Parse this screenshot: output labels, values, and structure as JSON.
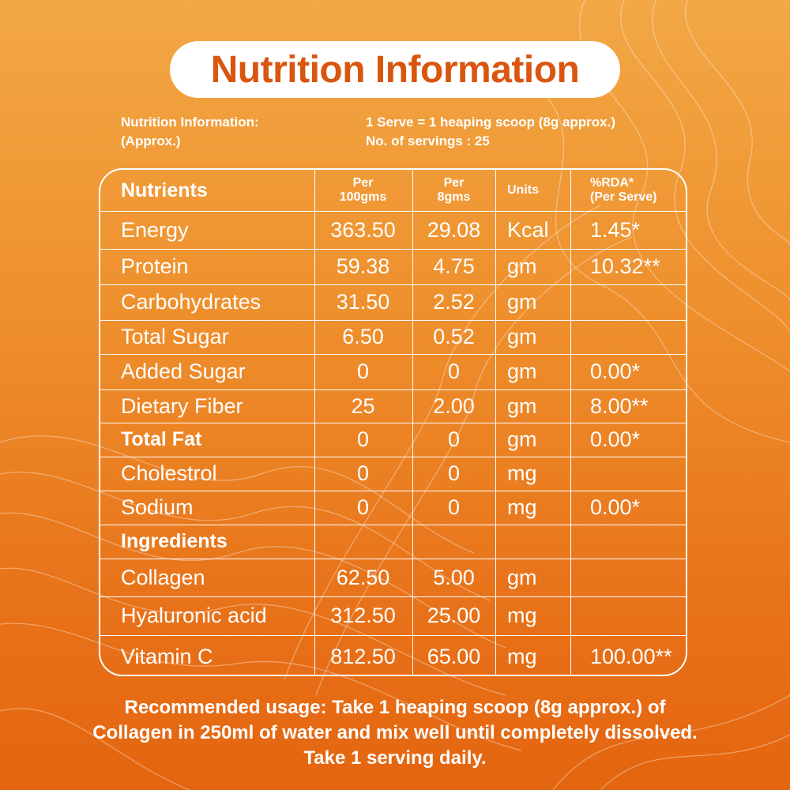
{
  "title": "Nutrition Information",
  "info": {
    "left_line1": "Nutrition Information:",
    "left_line2": "(Approx.)",
    "right_line1": "1 Serve = 1 heaping scoop (8g approx.)",
    "right_line2": "No. of servings : 25"
  },
  "table": {
    "headers": {
      "nutrients": "Nutrients",
      "per100_l1": "Per",
      "per100_l2": "100gms",
      "per8_l1": "Per",
      "per8_l2": "8gms",
      "units": "Units",
      "rda_l1": "%RDA*",
      "rda_l2": "(Per Serve)"
    },
    "rows": [
      {
        "name": "Energy",
        "per100": "363.50",
        "per8": "29.08",
        "unit": "Kcal",
        "rda": "1.45*"
      },
      {
        "name": "Protein",
        "per100": "59.38",
        "per8": "4.75",
        "unit": "gm",
        "rda": "10.32**"
      },
      {
        "name": "Carbohydrates",
        "per100": "31.50",
        "per8": "2.52",
        "unit": "gm",
        "rda": ""
      },
      {
        "name": "Total Sugar",
        "per100": "6.50",
        "per8": "0.52",
        "unit": "gm",
        "rda": ""
      },
      {
        "name": "Added Sugar",
        "per100": "0",
        "per8": "0",
        "unit": "gm",
        "rda": "0.00*"
      },
      {
        "name": "Dietary Fiber",
        "per100": "25",
        "per8": "2.00",
        "unit": "gm",
        "rda": "8.00**"
      },
      {
        "name": "Total Fat",
        "per100": "0",
        "per8": "0",
        "unit": "gm",
        "rda": "0.00*"
      },
      {
        "name": "Cholestrol",
        "per100": "0",
        "per8": "0",
        "unit": "mg",
        "rda": ""
      },
      {
        "name": "Sodium",
        "per100": "0",
        "per8": "0",
        "unit": "mg",
        "rda": "0.00*"
      },
      {
        "name": "Ingredients",
        "per100": "",
        "per8": "",
        "unit": "",
        "rda": ""
      },
      {
        "name": "Collagen",
        "per100": "62.50",
        "per8": "5.00",
        "unit": "gm",
        "rda": ""
      },
      {
        "name": "Hyaluronic acid",
        "per100": "312.50",
        "per8": "25.00",
        "unit": "mg",
        "rda": ""
      },
      {
        "name": "Vitamin C",
        "per100": "812.50",
        "per8": "65.00",
        "unit": "mg",
        "rda": "100.00**"
      }
    ]
  },
  "usage": {
    "line1": "Recommended usage:  Take 1 heaping scoop (8g approx.) of",
    "line2": "Collagen in 250ml of water and mix well until completely dissolved.",
    "line3": "Take 1 serving daily."
  }
}
